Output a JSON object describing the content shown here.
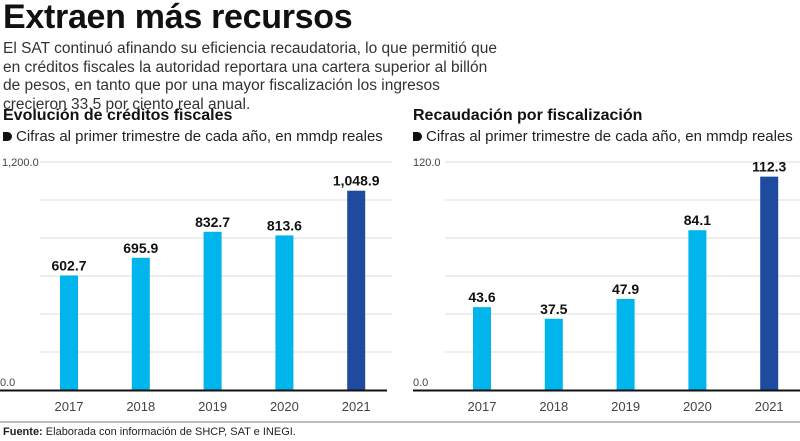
{
  "headline": "Extraen más recursos",
  "lede": "El SAT continuó afinando su eficiencia recaudatoria, lo que permitió que en créditos fiscales la autoridad reportara una cartera superior al billón de pesos, en tanto que por una mayor fiscalización los ingresos crecieron 33.5 por ciento real anual.",
  "footer": {
    "label": "Fuente:",
    "text": " Elaborada con información de SHCP, SAT e INEGI."
  },
  "colors": {
    "bar": "#00b4ec",
    "highlight": "#1f4b9f",
    "grid": "#e3e3e3",
    "axis": "#111111"
  },
  "chart_data": [
    {
      "type": "bar",
      "title": "Evolución de créditos fiscales",
      "subtitle": "Cifras al primer trimestre de cada año, en mmdp reales",
      "categories": [
        "2017",
        "2018",
        "2019",
        "2020",
        "2021"
      ],
      "values": [
        602.7,
        695.9,
        832.7,
        813.6,
        1048.9
      ],
      "value_labels": [
        "602.7",
        "695.9",
        "832.7",
        "813.6",
        "1,048.9"
      ],
      "highlight_index": 4,
      "ylim": [
        0,
        1200
      ],
      "ytick_labels": [
        "0.0",
        "1,200.0"
      ],
      "gridlines": 6,
      "xlabel": "",
      "ylabel": ""
    },
    {
      "type": "bar",
      "title": "Recaudación por fiscalización",
      "subtitle": "Cifras al primer trimestre de cada año, en mmdp reales",
      "categories": [
        "2017",
        "2018",
        "2019",
        "2020",
        "2021"
      ],
      "values": [
        43.6,
        37.5,
        47.9,
        84.1,
        112.3
      ],
      "value_labels": [
        "43.6",
        "37.5",
        "47.9",
        "84.1",
        "112.3"
      ],
      "highlight_index": 4,
      "ylim": [
        0,
        120
      ],
      "ytick_labels": [
        "0.0",
        "120.0"
      ],
      "gridlines": 6,
      "xlabel": "",
      "ylabel": ""
    }
  ]
}
